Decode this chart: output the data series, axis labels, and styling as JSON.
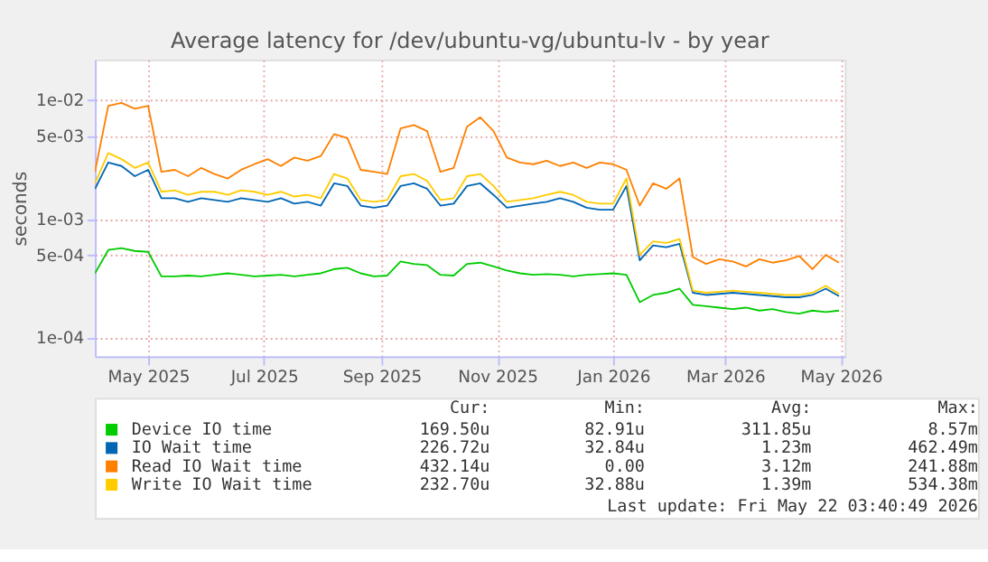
{
  "chart_data": {
    "type": "line",
    "title": "Average latency for /dev/ubuntu-vg/ubuntu-lv - by year",
    "ylabel": "seconds",
    "log": "y",
    "x": [
      "2025-04-03",
      "2025-04-10",
      "2025-04-17",
      "2025-04-24",
      "2025-05-01",
      "2025-05-08",
      "2025-05-15",
      "2025-05-22",
      "2025-05-29",
      "2025-06-05",
      "2025-06-12",
      "2025-06-19",
      "2025-06-26",
      "2025-07-03",
      "2025-07-10",
      "2025-07-17",
      "2025-07-24",
      "2025-07-31",
      "2025-08-07",
      "2025-08-14",
      "2025-08-21",
      "2025-08-28",
      "2025-09-04",
      "2025-09-11",
      "2025-09-18",
      "2025-09-25",
      "2025-10-02",
      "2025-10-09",
      "2025-10-16",
      "2025-10-23",
      "2025-10-30",
      "2025-11-06",
      "2025-11-13",
      "2025-11-20",
      "2025-11-27",
      "2025-12-04",
      "2025-12-11",
      "2025-12-18",
      "2025-12-25",
      "2026-01-01",
      "2026-01-08",
      "2026-01-15",
      "2026-01-22",
      "2026-01-29",
      "2026-02-05",
      "2026-02-12",
      "2026-02-19",
      "2026-02-26",
      "2026-03-05",
      "2026-03-12",
      "2026-03-19",
      "2026-03-26",
      "2026-04-02",
      "2026-04-09",
      "2026-04-16",
      "2026-04-23",
      "2026-04-30"
    ],
    "series": [
      {
        "name": "Device IO time",
        "color": "#00cc00",
        "values": [
          0.00035,
          0.00055,
          0.00057,
          0.00054,
          0.00053,
          0.00033,
          0.00033,
          0.000335,
          0.00033,
          0.00034,
          0.00035,
          0.00034,
          0.00033,
          0.000335,
          0.00034,
          0.00033,
          0.00034,
          0.00035,
          0.00038,
          0.00039,
          0.00035,
          0.00033,
          0.000335,
          0.00044,
          0.00042,
          0.00041,
          0.00034,
          0.000335,
          0.00042,
          0.00043,
          0.0004,
          0.00037,
          0.00035,
          0.00034,
          0.000345,
          0.00034,
          0.00033,
          0.00034,
          0.000345,
          0.00035,
          0.00034,
          0.0002,
          0.00023,
          0.00024,
          0.00026,
          0.00019,
          0.000185,
          0.00018,
          0.000175,
          0.00018,
          0.00017,
          0.000175,
          0.000165,
          0.00016,
          0.00017,
          0.000165,
          0.00017
        ]
      },
      {
        "name": "IO Wait time",
        "color": "#0066b3",
        "values": [
          0.0018,
          0.003,
          0.0028,
          0.0023,
          0.0026,
          0.0015,
          0.0015,
          0.0014,
          0.0015,
          0.00145,
          0.0014,
          0.0015,
          0.00145,
          0.0014,
          0.0015,
          0.00135,
          0.0014,
          0.0013,
          0.002,
          0.0019,
          0.0013,
          0.00125,
          0.0013,
          0.0019,
          0.002,
          0.0018,
          0.0013,
          0.00135,
          0.0019,
          0.002,
          0.0016,
          0.00125,
          0.0013,
          0.00135,
          0.0014,
          0.0015,
          0.0014,
          0.00125,
          0.0012,
          0.0012,
          0.0019,
          0.00045,
          0.0006,
          0.00058,
          0.00062,
          0.00024,
          0.00023,
          0.000235,
          0.00024,
          0.000235,
          0.00023,
          0.000225,
          0.00022,
          0.00022,
          0.00023,
          0.00026,
          0.000225
        ]
      },
      {
        "name": "Read IO Wait time",
        "color": "#ff8000",
        "values": [
          0.0025,
          0.009,
          0.0095,
          0.0085,
          0.009,
          0.0025,
          0.0026,
          0.0023,
          0.0027,
          0.0024,
          0.0022,
          0.0026,
          0.0029,
          0.0032,
          0.0028,
          0.0033,
          0.0031,
          0.0034,
          0.0052,
          0.0048,
          0.0026,
          0.0025,
          0.0024,
          0.0058,
          0.0062,
          0.0055,
          0.0025,
          0.0027,
          0.006,
          0.0072,
          0.0055,
          0.0033,
          0.003,
          0.0029,
          0.0031,
          0.0028,
          0.003,
          0.0027,
          0.003,
          0.0029,
          0.0026,
          0.0013,
          0.002,
          0.0018,
          0.0022,
          0.00048,
          0.00042,
          0.00046,
          0.00044,
          0.0004,
          0.00046,
          0.00043,
          0.00045,
          0.00049,
          0.00038,
          0.0005,
          0.00043
        ]
      },
      {
        "name": "Write IO Wait time",
        "color": "#ffcc00",
        "values": [
          0.002,
          0.0036,
          0.0032,
          0.0027,
          0.003,
          0.0017,
          0.00175,
          0.0016,
          0.0017,
          0.0017,
          0.0016,
          0.00175,
          0.0017,
          0.0016,
          0.0017,
          0.00155,
          0.0016,
          0.0015,
          0.0024,
          0.0022,
          0.00145,
          0.0014,
          0.00145,
          0.0023,
          0.0024,
          0.0021,
          0.00145,
          0.0015,
          0.0023,
          0.0024,
          0.0019,
          0.0014,
          0.00145,
          0.0015,
          0.0016,
          0.0017,
          0.0016,
          0.0014,
          0.00135,
          0.00135,
          0.0022,
          0.0005,
          0.00065,
          0.00063,
          0.00068,
          0.00025,
          0.00024,
          0.000245,
          0.00025,
          0.000245,
          0.00024,
          0.000235,
          0.00023,
          0.00023,
          0.00024,
          0.000275,
          0.000235
        ]
      }
    ],
    "xlim": [
      "2025-04-03",
      "2026-05-03"
    ],
    "xticks": [
      {
        "value": "2025-05-01",
        "label": "May 2025"
      },
      {
        "value": "2025-07-01",
        "label": "Jul 2025"
      },
      {
        "value": "2025-09-01",
        "label": "Sep 2025"
      },
      {
        "value": "2025-11-01",
        "label": "Nov 2025"
      },
      {
        "value": "2026-01-01",
        "label": "Jan 2026"
      },
      {
        "value": "2026-03-01",
        "label": "Mar 2026"
      },
      {
        "value": "2026-05-01",
        "label": "May 2026"
      }
    ],
    "ylim": [
      7e-05,
      0.022
    ],
    "yticks": [
      {
        "value": 0.0001,
        "label": "1e-04"
      },
      {
        "value": 0.0005,
        "label": "5e-04"
      },
      {
        "value": 0.001,
        "label": "1e-03"
      },
      {
        "value": 0.005,
        "label": "5e-03"
      },
      {
        "value": 0.01,
        "label": "1e-02"
      }
    ],
    "grid": true,
    "legend": "bottom",
    "annotations": [
      "Cur:",
      "Min:",
      "Avg:",
      "Max:",
      "169.50u",
      "82.91u",
      "311.85u",
      "8.57m",
      "226.72u",
      "32.84u",
      "1.23m",
      "462.49m",
      "432.14u",
      "0.00",
      "3.12m",
      "241.88m",
      "232.70u",
      "32.88u",
      "1.39m",
      "534.38m",
      "Last update: Fri May 22 03:40:49 2026"
    ]
  }
}
